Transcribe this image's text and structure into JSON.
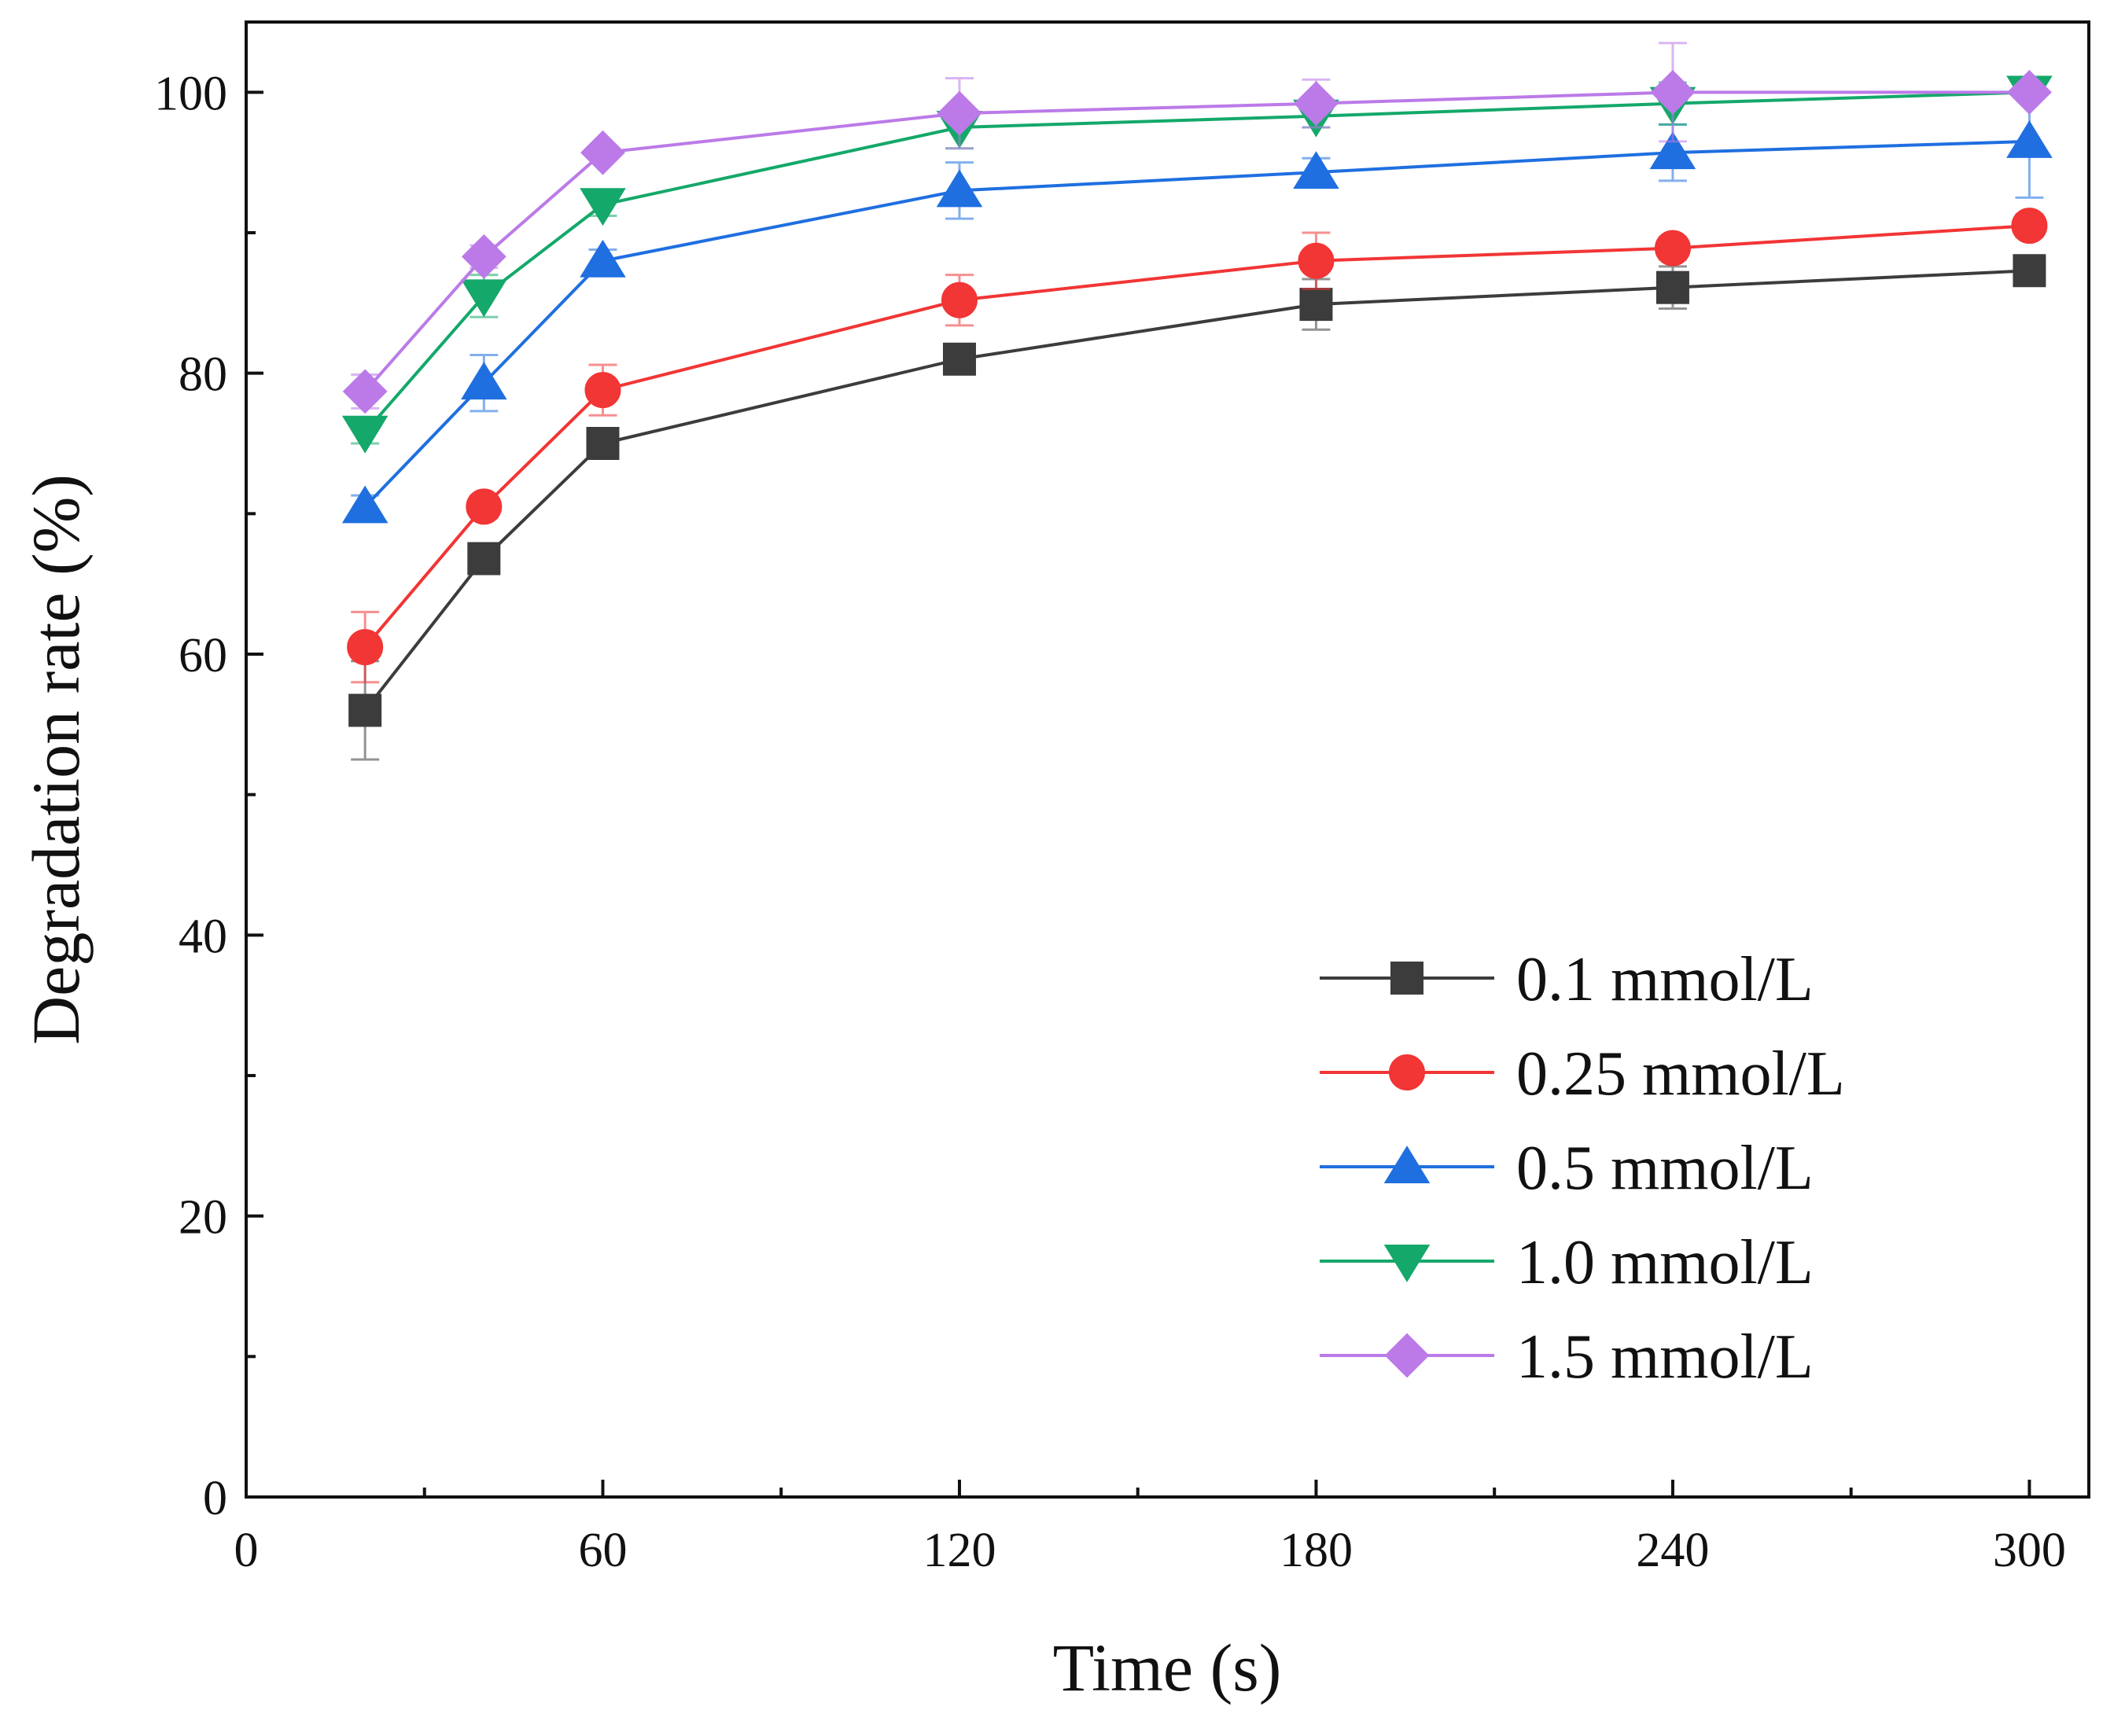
{
  "chart_data": {
    "type": "line",
    "title": "",
    "xlabel": "Time (s)",
    "ylabel": "Degradation rate (%)",
    "xlim": [
      0,
      310
    ],
    "ylim": [
      0,
      105
    ],
    "x_ticks": [
      0,
      60,
      120,
      180,
      240,
      300
    ],
    "x_minor_ticks": [
      30,
      90,
      150,
      210,
      270
    ],
    "y_ticks": [
      0,
      20,
      40,
      60,
      80,
      100
    ],
    "y_minor_ticks": [
      10,
      30,
      50,
      70,
      90
    ],
    "x_tick_labels": [
      "0",
      "60",
      "120",
      "180",
      "240",
      "300"
    ],
    "y_tick_labels": [
      "0",
      "20",
      "40",
      "60",
      "80",
      "100"
    ],
    "grid": false,
    "legend_position": "bottom-right",
    "x": [
      20,
      40,
      60,
      120,
      180,
      240,
      300
    ],
    "series": [
      {
        "name": "0.1 mmol/L",
        "color": "#3c3c3c",
        "marker": "square",
        "values": [
          56.0,
          66.8,
          75.0,
          81.0,
          84.9,
          86.1,
          87.3
        ],
        "errors": [
          3.5,
          0.8,
          0.8,
          0.8,
          1.8,
          1.5,
          0.5
        ]
      },
      {
        "name": "0.25 mmol/L",
        "color": "#f23535",
        "marker": "circle",
        "values": [
          60.5,
          70.5,
          78.8,
          85.2,
          88.0,
          88.9,
          90.5
        ],
        "errors": [
          2.5,
          0.8,
          1.8,
          1.8,
          2.0,
          0.8,
          0.8
        ]
      },
      {
        "name": "0.5 mmol/L",
        "color": "#1f6fe0",
        "marker": "triangle-up",
        "values": [
          70.5,
          79.3,
          88.0,
          93.0,
          94.3,
          95.7,
          96.5
        ],
        "errors": [
          0.8,
          2.0,
          0.8,
          2.0,
          1.0,
          2.0,
          4.0
        ]
      },
      {
        "name": "1.0 mmol/L",
        "color": "#14a86a",
        "marker": "triangle-down",
        "values": [
          75.8,
          85.5,
          92.0,
          97.5,
          98.3,
          99.2,
          100.0
        ],
        "errors": [
          0.8,
          1.5,
          0.8,
          1.5,
          0.8,
          1.5,
          0.5
        ]
      },
      {
        "name": "1.5 mmol/L",
        "color": "#bb7ae8",
        "marker": "diamond",
        "values": [
          78.7,
          88.3,
          95.7,
          98.5,
          99.2,
          100.0,
          100.0
        ],
        "errors": [
          1.2,
          0.8,
          0.5,
          2.5,
          1.7,
          3.5,
          0.5
        ]
      }
    ]
  }
}
